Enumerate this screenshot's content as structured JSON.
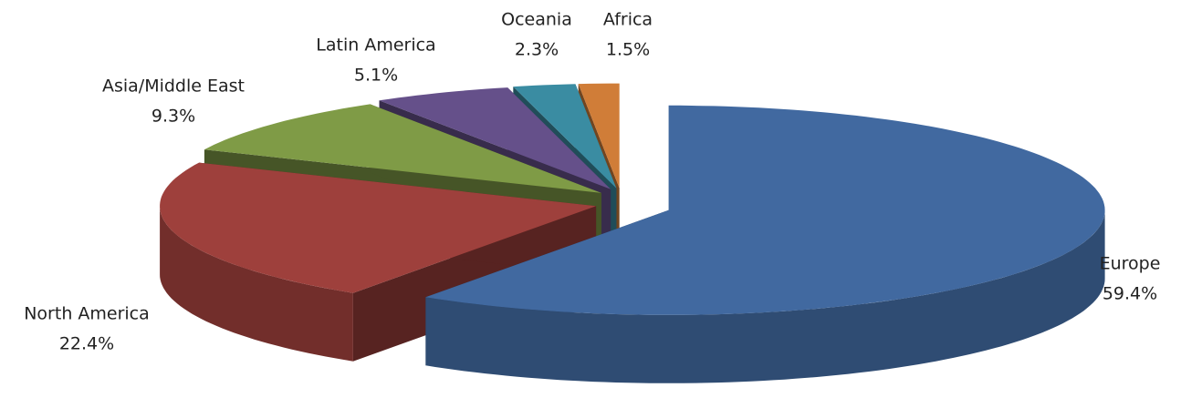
{
  "chart_data": {
    "type": "pie3d",
    "categories": [
      "Europe",
      "North America",
      "Asia/Middle  East",
      "Latin America",
      "Oceania",
      "Africa"
    ],
    "values": [
      59.4,
      22.4,
      9.3,
      5.1,
      2.3,
      1.5
    ],
    "value_labels": [
      "59.4%",
      "22.4%",
      "9.3%",
      "5.1%",
      "2.3%",
      "1.5%"
    ],
    "colors": [
      "#4169a0",
      "#9e403c",
      "#7f9b46",
      "#65508a",
      "#3a8ca2",
      "#d07d38"
    ]
  }
}
